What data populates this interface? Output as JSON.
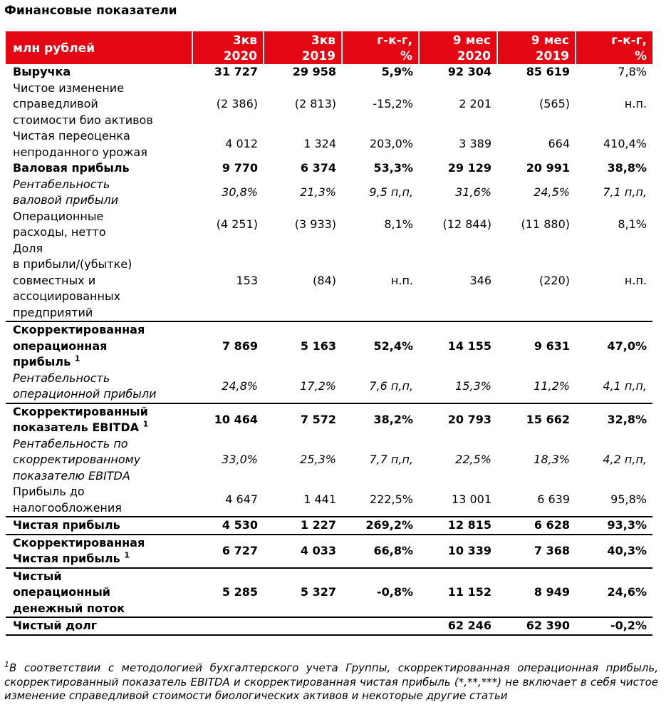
{
  "title": "Финансовые показатели",
  "table": {
    "header": {
      "label": "млн рублей",
      "columns": [
        [
          "3кв",
          "2020"
        ],
        [
          "3кв",
          "2019"
        ],
        [
          "г-к-г,",
          "%"
        ],
        [
          "9 мес",
          "2020"
        ],
        [
          "9 мес",
          "2019"
        ],
        [
          "г-к-г,",
          "%"
        ]
      ]
    },
    "rows": [
      {
        "label": [
          "Выручка"
        ],
        "values": [
          "31 727",
          "29 958",
          "5,9%",
          "92 304",
          "85 619",
          "7,8%"
        ]
      },
      {
        "label": [
          "Чистое изменение",
          "справедливой",
          "стоимости био активов"
        ],
        "values": [
          "(2 386)",
          "(2 813)",
          "-15,2%",
          "2 201",
          "(565)",
          "н.п."
        ]
      },
      {
        "label": [
          "Чистая переоценка",
          "непроданного урожая"
        ],
        "values": [
          "4 012",
          "1 324",
          "203,0%",
          "3 389",
          "664",
          "410,4%"
        ]
      },
      {
        "label": [
          "Валовая прибыль"
        ],
        "values": [
          "9 770",
          "6 374",
          "53,3%",
          "29 129",
          "20 991",
          "38,8%"
        ]
      },
      {
        "label": [
          "Рентабельность",
          "валовой прибыли"
        ],
        "values": [
          "30,8%",
          "21,3%",
          "9,5 п,п,",
          "31,6%",
          "24,5%",
          "7,1 п,п,"
        ]
      },
      {
        "label": [
          "Операционные",
          "расходы, нетто"
        ],
        "values": [
          "(4 251)",
          "(3 933)",
          "8,1%",
          "(12 844)",
          "(11 880)",
          "8,1%"
        ]
      },
      {
        "label": [
          "Доля",
          "в прибыли/(убытке)",
          "совместных и",
          "ассоциированных",
          "предприятий"
        ],
        "values": [
          "153",
          "(84)",
          "н.п.",
          "346",
          "(220)",
          "н.п."
        ]
      },
      {
        "label": [
          "Скорректированная",
          "операционная",
          "прибыль"
        ],
        "sup": "1",
        "values": [
          "7 869",
          "5 163",
          "52,4%",
          "14 155",
          "9 631",
          "47,0%"
        ]
      },
      {
        "label": [
          "Рентабельность",
          "операционной прибыли"
        ],
        "values": [
          "24,8%",
          "17,2%",
          "7,6 п,п,",
          "15,3%",
          "11,2%",
          "4,1 п,п,"
        ]
      },
      {
        "label": [
          "Скорректированный",
          "показатель EBITDA"
        ],
        "sup": "1",
        "values": [
          "10 464",
          "7 572",
          "38,2%",
          "20 793",
          "15 662",
          "32,8%"
        ]
      },
      {
        "label": [
          "Рентабельность по",
          "скорректированному",
          "показателю EBITDA"
        ],
        "values": [
          "33,0%",
          "25,3%",
          "7,7 п,п,",
          "22,5%",
          "18,3%",
          "4,2 п,п,"
        ]
      },
      {
        "label": [
          "Прибыль до",
          "налогообложения"
        ],
        "values": [
          "4 647",
          "1 441",
          "222,5%",
          "13 001",
          "6 639",
          "95,8%"
        ]
      },
      {
        "label": [
          "Чистая прибыль"
        ],
        "values": [
          "4 530",
          "1 227",
          "269,2%",
          "12 815",
          "6 628",
          "93,3%"
        ]
      },
      {
        "label": [
          "Скорректированная",
          "Чистая прибыль"
        ],
        "sup": "1",
        "values": [
          "6 727",
          "4 033",
          "66,8%",
          "10 339",
          "7 368",
          "40,3%"
        ]
      },
      {
        "label": [
          "Чистый",
          "операционный",
          "денежный поток"
        ],
        "values": [
          "5 285",
          "5 327",
          "-0,8%",
          "11 152",
          "8 949",
          "24,6%"
        ]
      },
      {
        "label": [
          "Чистый долг"
        ],
        "values": [
          null,
          null,
          null,
          "62 246",
          "62 390",
          "-0,2%"
        ]
      }
    ]
  },
  "footnote": {
    "sup": "1",
    "text": "В соответствии с методологией бухгалтерского учета Группы, скорректированная операционная прибыль, скорректированный показатель EBITDA и скорректированная чистая прибыль (*,**,***) не включает в себя чистое изменение справедливой стоимости биологических активов и некоторые другие статьи"
  }
}
